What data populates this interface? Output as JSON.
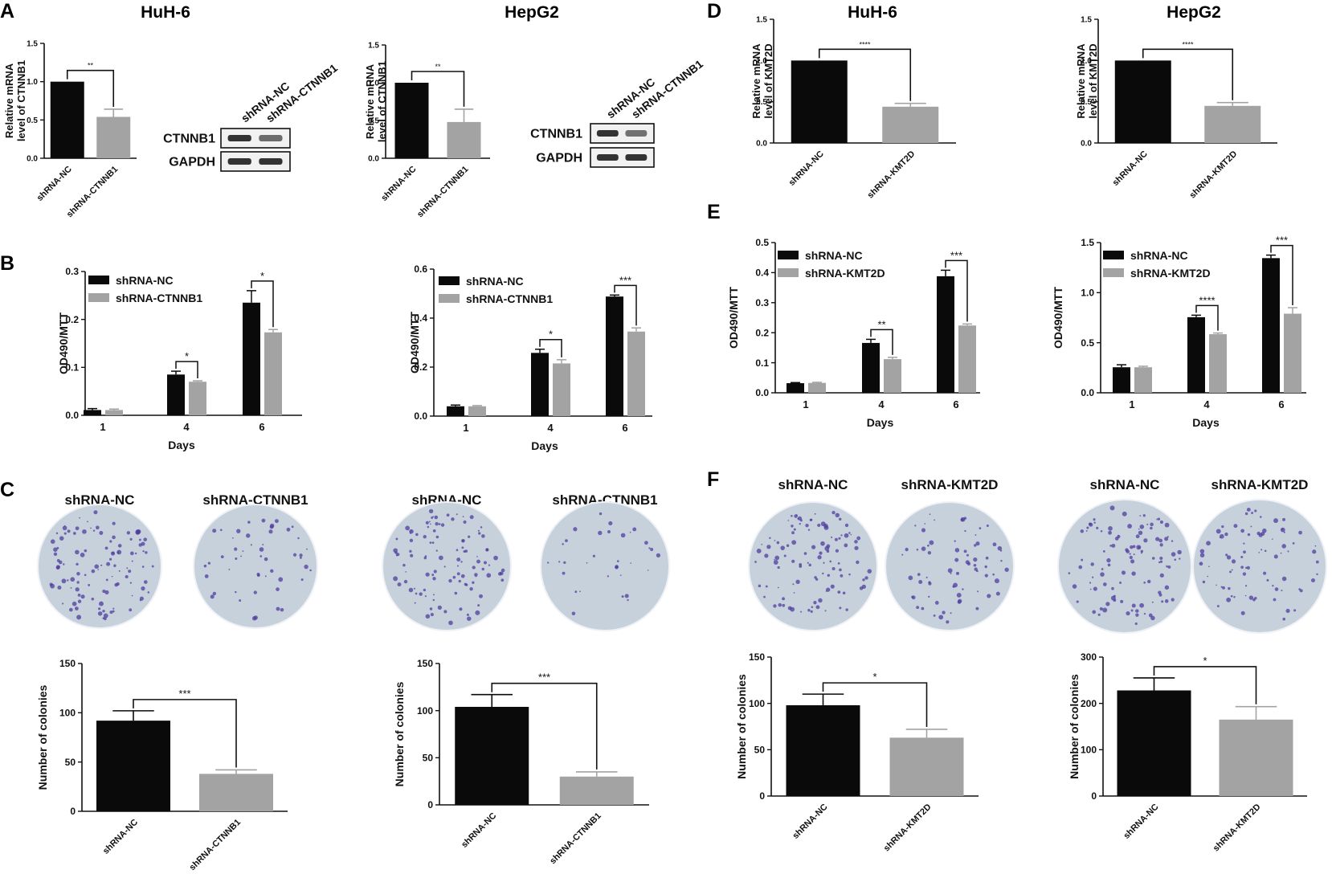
{
  "figure": {
    "colors": {
      "nc": "#0a0a0a",
      "kd": "#a3a3a3",
      "axis": "#111111",
      "blot_bg": "#f1f1f1",
      "band": "#1e1e1e",
      "dish": "#c7d1dc",
      "dish_edge": "#eef1f5",
      "colony": "#4f3c9e"
    },
    "panel_letters": [
      "A",
      "B",
      "C",
      "D",
      "E",
      "F"
    ],
    "cell_lines": [
      "HuH-6",
      "HepG2",
      "HuH-6",
      "HepG2"
    ],
    "western_blot": [
      {
        "lanes": [
          "shRNA-NC",
          "shRNA-CTNNB1"
        ],
        "rows": [
          "CTNNB1",
          "GAPDH"
        ],
        "ctnnb1_relative_band": [
          1.0,
          0.55
        ]
      },
      {
        "lanes": [
          "shRNA-NC",
          "shRNA-CTNNB1"
        ],
        "rows": [
          "CTNNB1",
          "GAPDH"
        ],
        "ctnnb1_relative_band": [
          1.0,
          0.5
        ]
      }
    ],
    "colony_dishes": [
      {
        "labels": [
          "shRNA-NC",
          "shRNA-CTNNB1"
        ],
        "colony_density": [
          1.0,
          0.45
        ]
      },
      {
        "labels": [
          "shRNA-NC",
          "shRNA-CTNNB1"
        ],
        "colony_density": [
          1.0,
          0.3
        ]
      },
      {
        "labels": [
          "shRNA-NC",
          "shRNA-KMT2D"
        ],
        "colony_density": [
          1.0,
          0.65
        ]
      },
      {
        "labels": [
          "shRNA-NC",
          "shRNA-KMT2D"
        ],
        "colony_density": [
          1.0,
          0.75
        ]
      }
    ]
  },
  "chart_data": [
    {
      "id": "A1",
      "type": "bar",
      "ylabel": [
        "Relative mRNA",
        "level of CTNNB1"
      ],
      "categories": [
        "shRNA-NC",
        "shRNA-CTNNB1"
      ],
      "values": [
        1.0,
        0.54
      ],
      "errors": [
        0,
        0.1
      ],
      "ylim": [
        0,
        1.5
      ],
      "yticks": [
        "0.0",
        "0.5",
        "1.0",
        "1.5"
      ],
      "significance": "**"
    },
    {
      "id": "A2",
      "type": "bar",
      "ylabel": [
        "Relative mRNA",
        "level of CTNNB1"
      ],
      "categories": [
        "shRNA-NC",
        "shRNA-CTNNB1"
      ],
      "values": [
        1.0,
        0.48
      ],
      "errors": [
        0,
        0.17
      ],
      "ylim": [
        0,
        1.5
      ],
      "yticks": [
        "0.0",
        "0.5",
        "1.0",
        "1.5"
      ],
      "significance": "**"
    },
    {
      "id": "D1",
      "type": "bar",
      "ylabel": [
        "Relative mRNA",
        "level of KMT2D"
      ],
      "categories": [
        "shRNA-NC",
        "shRNA-KMT2D"
      ],
      "values": [
        1.0,
        0.44
      ],
      "errors": [
        0,
        0.04
      ],
      "ylim": [
        0,
        1.5
      ],
      "yticks": [
        "0.0",
        "0.5",
        "1.0",
        "1.5"
      ],
      "significance": "****"
    },
    {
      "id": "D2",
      "type": "bar",
      "ylabel": [
        "Relative mRNA",
        "level of KMT2D"
      ],
      "categories": [
        "shRNA-NC",
        "shRNA-KMT2D"
      ],
      "values": [
        1.0,
        0.45
      ],
      "errors": [
        0,
        0.04
      ],
      "ylim": [
        0,
        1.5
      ],
      "yticks": [
        "0.0",
        "0.5",
        "1.0",
        "1.5"
      ],
      "significance": "****"
    },
    {
      "id": "B1",
      "type": "bar",
      "xlabel": "Days",
      "ylabel": [
        "OD490/MTT"
      ],
      "categories": [
        "1",
        "4",
        "6"
      ],
      "series": [
        {
          "name": "shRNA-NC",
          "values": [
            0.011,
            0.085,
            0.235
          ],
          "errors": [
            0.003,
            0.007,
            0.025
          ]
        },
        {
          "name": "shRNA-CTNNB1",
          "values": [
            0.011,
            0.07,
            0.173
          ],
          "errors": [
            0.002,
            0.002,
            0.006
          ]
        }
      ],
      "ylim": [
        0,
        0.3
      ],
      "yticks": [
        "0.0",
        "0.1",
        "0.2",
        "0.3"
      ],
      "significance": [
        "",
        "*",
        "*"
      ],
      "legend": "top-left"
    },
    {
      "id": "B2",
      "type": "bar",
      "xlabel": "Days",
      "ylabel": [
        "OD490/MTT"
      ],
      "categories": [
        "1",
        "4",
        "6"
      ],
      "series": [
        {
          "name": "shRNA-NC",
          "values": [
            0.04,
            0.258,
            0.488
          ],
          "errors": [
            0.005,
            0.015,
            0.006
          ]
        },
        {
          "name": "shRNA-CTNNB1",
          "values": [
            0.04,
            0.215,
            0.345
          ],
          "errors": [
            0.003,
            0.015,
            0.015
          ]
        }
      ],
      "ylim": [
        0,
        0.6
      ],
      "yticks": [
        "0.0",
        "0.2",
        "0.4",
        "0.6"
      ],
      "significance": [
        "",
        "*",
        "***"
      ],
      "legend": "top-left"
    },
    {
      "id": "E1",
      "type": "bar",
      "xlabel": "Days",
      "ylabel": [
        "OD490/MTT"
      ],
      "categories": [
        "1",
        "4",
        "6"
      ],
      "series": [
        {
          "name": "shRNA-NC",
          "values": [
            0.032,
            0.166,
            0.388
          ],
          "errors": [
            0.002,
            0.012,
            0.02
          ]
        },
        {
          "name": "shRNA-KMT2D",
          "values": [
            0.033,
            0.112,
            0.224
          ],
          "errors": [
            0.002,
            0.006,
            0.005
          ]
        }
      ],
      "ylim": [
        0,
        0.5
      ],
      "yticks": [
        "0.0",
        "0.1",
        "0.2",
        "0.3",
        "0.4",
        "0.5"
      ],
      "significance": [
        "",
        "**",
        "***"
      ],
      "legend": "top-left"
    },
    {
      "id": "E2",
      "type": "bar",
      "xlabel": "Days",
      "ylabel": [
        "OD490/MTT"
      ],
      "categories": [
        "1",
        "4",
        "6"
      ],
      "series": [
        {
          "name": "shRNA-NC",
          "values": [
            0.255,
            0.755,
            1.345
          ],
          "errors": [
            0.025,
            0.02,
            0.03
          ]
        },
        {
          "name": "shRNA-KMT2D",
          "values": [
            0.255,
            0.585,
            0.79
          ],
          "errors": [
            0.01,
            0.012,
            0.06
          ]
        }
      ],
      "ylim": [
        0,
        1.5
      ],
      "yticks": [
        "0.0",
        "0.5",
        "1.0",
        "1.5"
      ],
      "significance": [
        "",
        "****",
        "***"
      ],
      "legend": "top-left"
    },
    {
      "id": "C1",
      "type": "bar",
      "ylabel": [
        "Number of colonies"
      ],
      "categories": [
        "shRNA-NC",
        "shRNA-CTNNB1"
      ],
      "values": [
        92,
        38
      ],
      "errors": [
        10,
        4
      ],
      "ylim": [
        0,
        150
      ],
      "yticks": [
        "0",
        "50",
        "100",
        "150"
      ],
      "significance": "***"
    },
    {
      "id": "C2",
      "type": "bar",
      "ylabel": [
        "Number of colonies"
      ],
      "categories": [
        "shRNA-NC",
        "shRNA-CTNNB1"
      ],
      "values": [
        104,
        30
      ],
      "errors": [
        13,
        5
      ],
      "ylim": [
        0,
        150
      ],
      "yticks": [
        "0",
        "50",
        "100",
        "150"
      ],
      "significance": "***"
    },
    {
      "id": "F1",
      "type": "bar",
      "ylabel": [
        "Number of colonies"
      ],
      "categories": [
        "shRNA-NC",
        "shRNA-KMT2D"
      ],
      "values": [
        98,
        63
      ],
      "errors": [
        12,
        9
      ],
      "ylim": [
        0,
        150
      ],
      "yticks": [
        "0",
        "50",
        "100",
        "150"
      ],
      "significance": "*"
    },
    {
      "id": "F2",
      "type": "bar",
      "ylabel": [
        "Number of colonies"
      ],
      "categories": [
        "shRNA-NC",
        "shRNA-KMT2D"
      ],
      "values": [
        228,
        165
      ],
      "errors": [
        27,
        28
      ],
      "ylim": [
        0,
        300
      ],
      "yticks": [
        "0",
        "100",
        "200",
        "300"
      ],
      "significance": "*"
    }
  ]
}
